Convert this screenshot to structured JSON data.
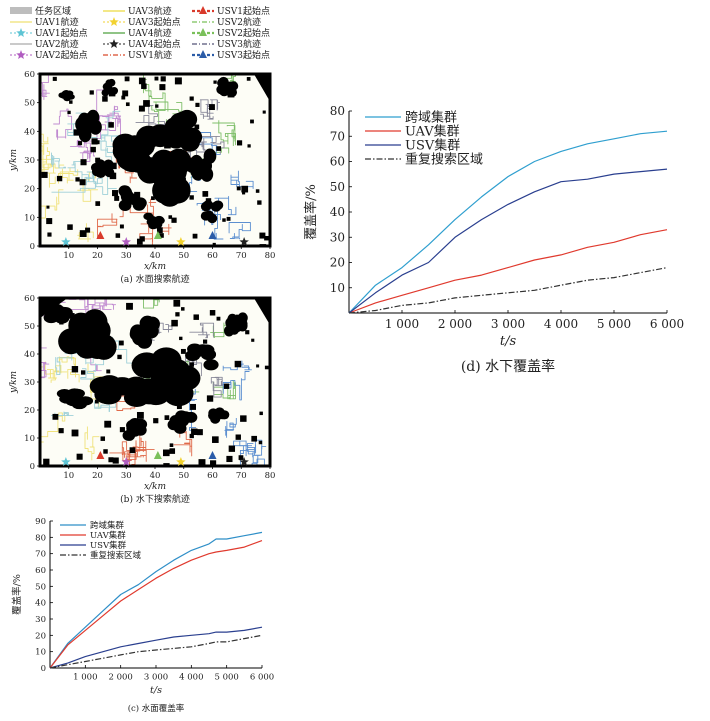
{
  "legend_top": [
    {
      "label": "任务区域",
      "kind": "area",
      "color": "#bdbdbd"
    },
    {
      "label": "UAV1航迹",
      "kind": "line",
      "color": "#f2e58a"
    },
    {
      "label": "UAV1起始点",
      "kind": "star",
      "color": "#5ec4d4"
    },
    {
      "label": "UAV2航迹",
      "kind": "line",
      "color": "#b9b9b9"
    },
    {
      "label": "UAV2起始点",
      "kind": "star",
      "color": "#b05cc0"
    },
    {
      "label": "UAV3航迹",
      "kind": "line",
      "color": "#efe060"
    },
    {
      "label": "UAV3起始点",
      "kind": "star",
      "color": "#f2d230"
    },
    {
      "label": "UAV4航迹",
      "kind": "line",
      "color": "#6bb05f"
    },
    {
      "label": "UAV4起始点",
      "kind": "star",
      "color": "#222222"
    },
    {
      "label": "USV1航迹",
      "kind": "dashdot",
      "color": "#d94b2b"
    },
    {
      "label": "USV1起始点",
      "kind": "tri",
      "color": "#d93a2b"
    },
    {
      "label": "USV2航迹",
      "kind": "dashdot",
      "color": "#7ac05a"
    },
    {
      "label": "USV2起始点",
      "kind": "tri",
      "color": "#7ac05a"
    },
    {
      "label": "USV3航迹",
      "kind": "dashdot",
      "color": "#555577"
    },
    {
      "label": "USV3起始点",
      "kind": "tri",
      "color": "#2b5ca8"
    }
  ],
  "maps": [
    {
      "id": "map-a",
      "caption": "(a) 水面搜索航迹",
      "xlabel": "x/km",
      "ylabel": "y/km",
      "xticks": [
        "10",
        "20",
        "30",
        "40",
        "50",
        "60",
        "70",
        "80"
      ],
      "yticks": [
        "0",
        "10",
        "20",
        "30",
        "40",
        "50",
        "60"
      ]
    },
    {
      "id": "map-b",
      "caption": "(b) 水下搜索航迹",
      "xlabel": "x/km",
      "ylabel": "y/km",
      "xticks": [
        "10",
        "20",
        "30",
        "40",
        "50",
        "60",
        "70",
        "80"
      ],
      "yticks": [
        "0",
        "10",
        "20",
        "30",
        "40",
        "50",
        "60"
      ]
    }
  ],
  "chart_data": [
    {
      "id": "chart-c",
      "type": "line",
      "caption": "(c) 水面覆盖率",
      "xlabel": "t/s",
      "ylabel": "覆盖率/%",
      "xlim": [
        0,
        6000
      ],
      "ylim": [
        0,
        90
      ],
      "xticks": [
        1000,
        2000,
        3000,
        4000,
        5000,
        6000
      ],
      "xtick_labels": [
        "1 000",
        "2 000",
        "3 000",
        "4 000",
        "5 000",
        "6 000"
      ],
      "yticks": [
        0,
        10,
        20,
        30,
        40,
        50,
        60,
        70,
        80,
        90
      ],
      "legend_position": "top-left",
      "x": [
        0,
        500,
        1000,
        1500,
        2000,
        2500,
        3000,
        3500,
        4000,
        4500,
        4700,
        5000,
        5500,
        6000
      ],
      "series": [
        {
          "name": "跨域集群",
          "color": "#2f8fc8",
          "dash": "",
          "values": [
            0,
            15,
            25,
            35,
            45,
            51,
            59,
            66,
            72,
            76,
            79,
            79,
            81,
            83
          ]
        },
        {
          "name": "UAV集群",
          "color": "#e03a2e",
          "dash": "",
          "values": [
            0,
            14,
            23,
            32,
            41,
            48,
            55,
            61,
            66,
            70,
            71,
            72,
            74,
            78
          ]
        },
        {
          "name": "USV集群",
          "color": "#2a3f8f",
          "dash": "",
          "values": [
            0,
            3,
            7,
            10,
            13,
            15,
            17,
            19,
            20,
            21,
            22,
            22,
            23,
            25
          ]
        },
        {
          "name": "重复搜索区域",
          "color": "#333333",
          "dash": "6,2,1.5,2",
          "values": [
            0,
            2,
            4,
            6,
            8,
            10,
            11,
            12,
            13,
            15,
            16,
            16,
            18,
            20
          ]
        }
      ]
    },
    {
      "id": "chart-d",
      "type": "line",
      "caption": "(d) 水下覆盖率",
      "xlabel": "t/s",
      "ylabel": "覆盖率/%",
      "xlim": [
        0,
        6000
      ],
      "ylim": [
        0,
        80
      ],
      "xticks": [
        1000,
        2000,
        3000,
        4000,
        5000,
        6000
      ],
      "xtick_labels": [
        "1 000",
        "2 000",
        "3 000",
        "4 000",
        "5 000",
        "6 000"
      ],
      "yticks": [
        10,
        20,
        30,
        40,
        50,
        60,
        70,
        80
      ],
      "legend_position": "top-left",
      "x": [
        0,
        500,
        1000,
        1500,
        2000,
        2500,
        3000,
        3500,
        4000,
        4500,
        5000,
        5500,
        6000
      ],
      "series": [
        {
          "name": "跨域集群",
          "color": "#2f9fcf",
          "dash": "",
          "values": [
            0,
            11,
            18,
            27,
            37,
            46,
            54,
            60,
            64,
            67,
            69,
            71,
            72
          ]
        },
        {
          "name": "UAV集群",
          "color": "#e03a2e",
          "dash": "",
          "values": [
            0,
            4,
            7,
            10,
            13,
            15,
            18,
            21,
            23,
            26,
            28,
            31,
            33
          ]
        },
        {
          "name": "USV集群",
          "color": "#2a3f8f",
          "dash": "",
          "values": [
            0,
            8,
            15,
            20,
            30,
            37,
            43,
            48,
            52,
            53,
            55,
            56,
            57
          ]
        },
        {
          "name": "重复搜索区域",
          "color": "#333333",
          "dash": "6,2,1.5,2",
          "values": [
            0,
            1,
            3,
            4,
            6,
            7,
            8,
            9,
            11,
            13,
            14,
            16,
            18
          ]
        }
      ]
    }
  ]
}
